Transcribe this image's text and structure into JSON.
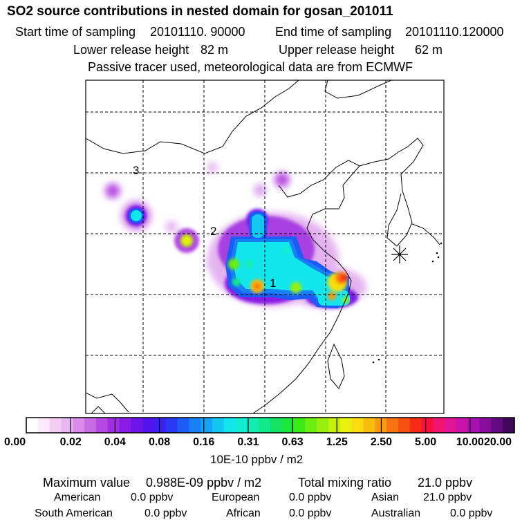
{
  "header": {
    "title": "SO2 source contributions in nested domain for gosan_201011",
    "start_label": "Start time of sampling",
    "start_value": "20101110. 90000",
    "end_label": "End time of sampling",
    "end_value": "20101110.120000",
    "lower_label": "Lower release height",
    "lower_value": "82 m",
    "upper_label": "Upper release height",
    "upper_value": "62 m",
    "tracer_note": "Passive tracer used, meteorological data are from ECMWF"
  },
  "map": {
    "markers": [
      "1",
      "2",
      "3"
    ],
    "receptor_symbol": "asterisk"
  },
  "colorbar": {
    "ticks": [
      "0.00",
      "0.02",
      "0.04",
      "0.08",
      "0.16",
      "0.31",
      "0.63",
      "1.25",
      "2.50",
      "5.00",
      "10.00",
      "20.00"
    ],
    "colors": [
      "#ffffff",
      "#fbe8fb",
      "#f4cdf4",
      "#eab3f2",
      "#d98be9",
      "#c96be4",
      "#b549e2",
      "#a22ee4",
      "#8a1ce6",
      "#6f14ea",
      "#5514ee",
      "#3c20f2",
      "#2a3af4",
      "#1c5cf4",
      "#1780f4",
      "#14a2f4",
      "#12c6f0",
      "#12e6ec",
      "#12ecd2",
      "#12ecb0",
      "#12e88c",
      "#14e262",
      "#1ce63c",
      "#3cea18",
      "#6cee10",
      "#98f010",
      "#c4f010",
      "#ecf010",
      "#f8dc10",
      "#f8bc10",
      "#f89a10",
      "#f87410",
      "#f84e10",
      "#f82a18",
      "#f81040",
      "#f01470",
      "#e01494",
      "#c814a8",
      "#a810b0",
      "#860c9c",
      "#620a80",
      "#400658"
    ],
    "unit": "10E-10 ppbv / m2"
  },
  "summary": {
    "max_label": "Maximum value",
    "max_value": "0.988E-09 ppbv / m2",
    "total_label": "Total mixing ratio",
    "total_value": "21.0 ppbv",
    "regions": [
      {
        "name": "American",
        "value": "0.0 ppbv"
      },
      {
        "name": "European",
        "value": "0.0 ppbv"
      },
      {
        "name": "Asian",
        "value": "21.0 ppbv"
      },
      {
        "name": "South American",
        "value": "0.0 ppbv"
      },
      {
        "name": "African",
        "value": "0.0 ppbv"
      },
      {
        "name": "Australian",
        "value": "0.0 ppbv"
      }
    ]
  }
}
